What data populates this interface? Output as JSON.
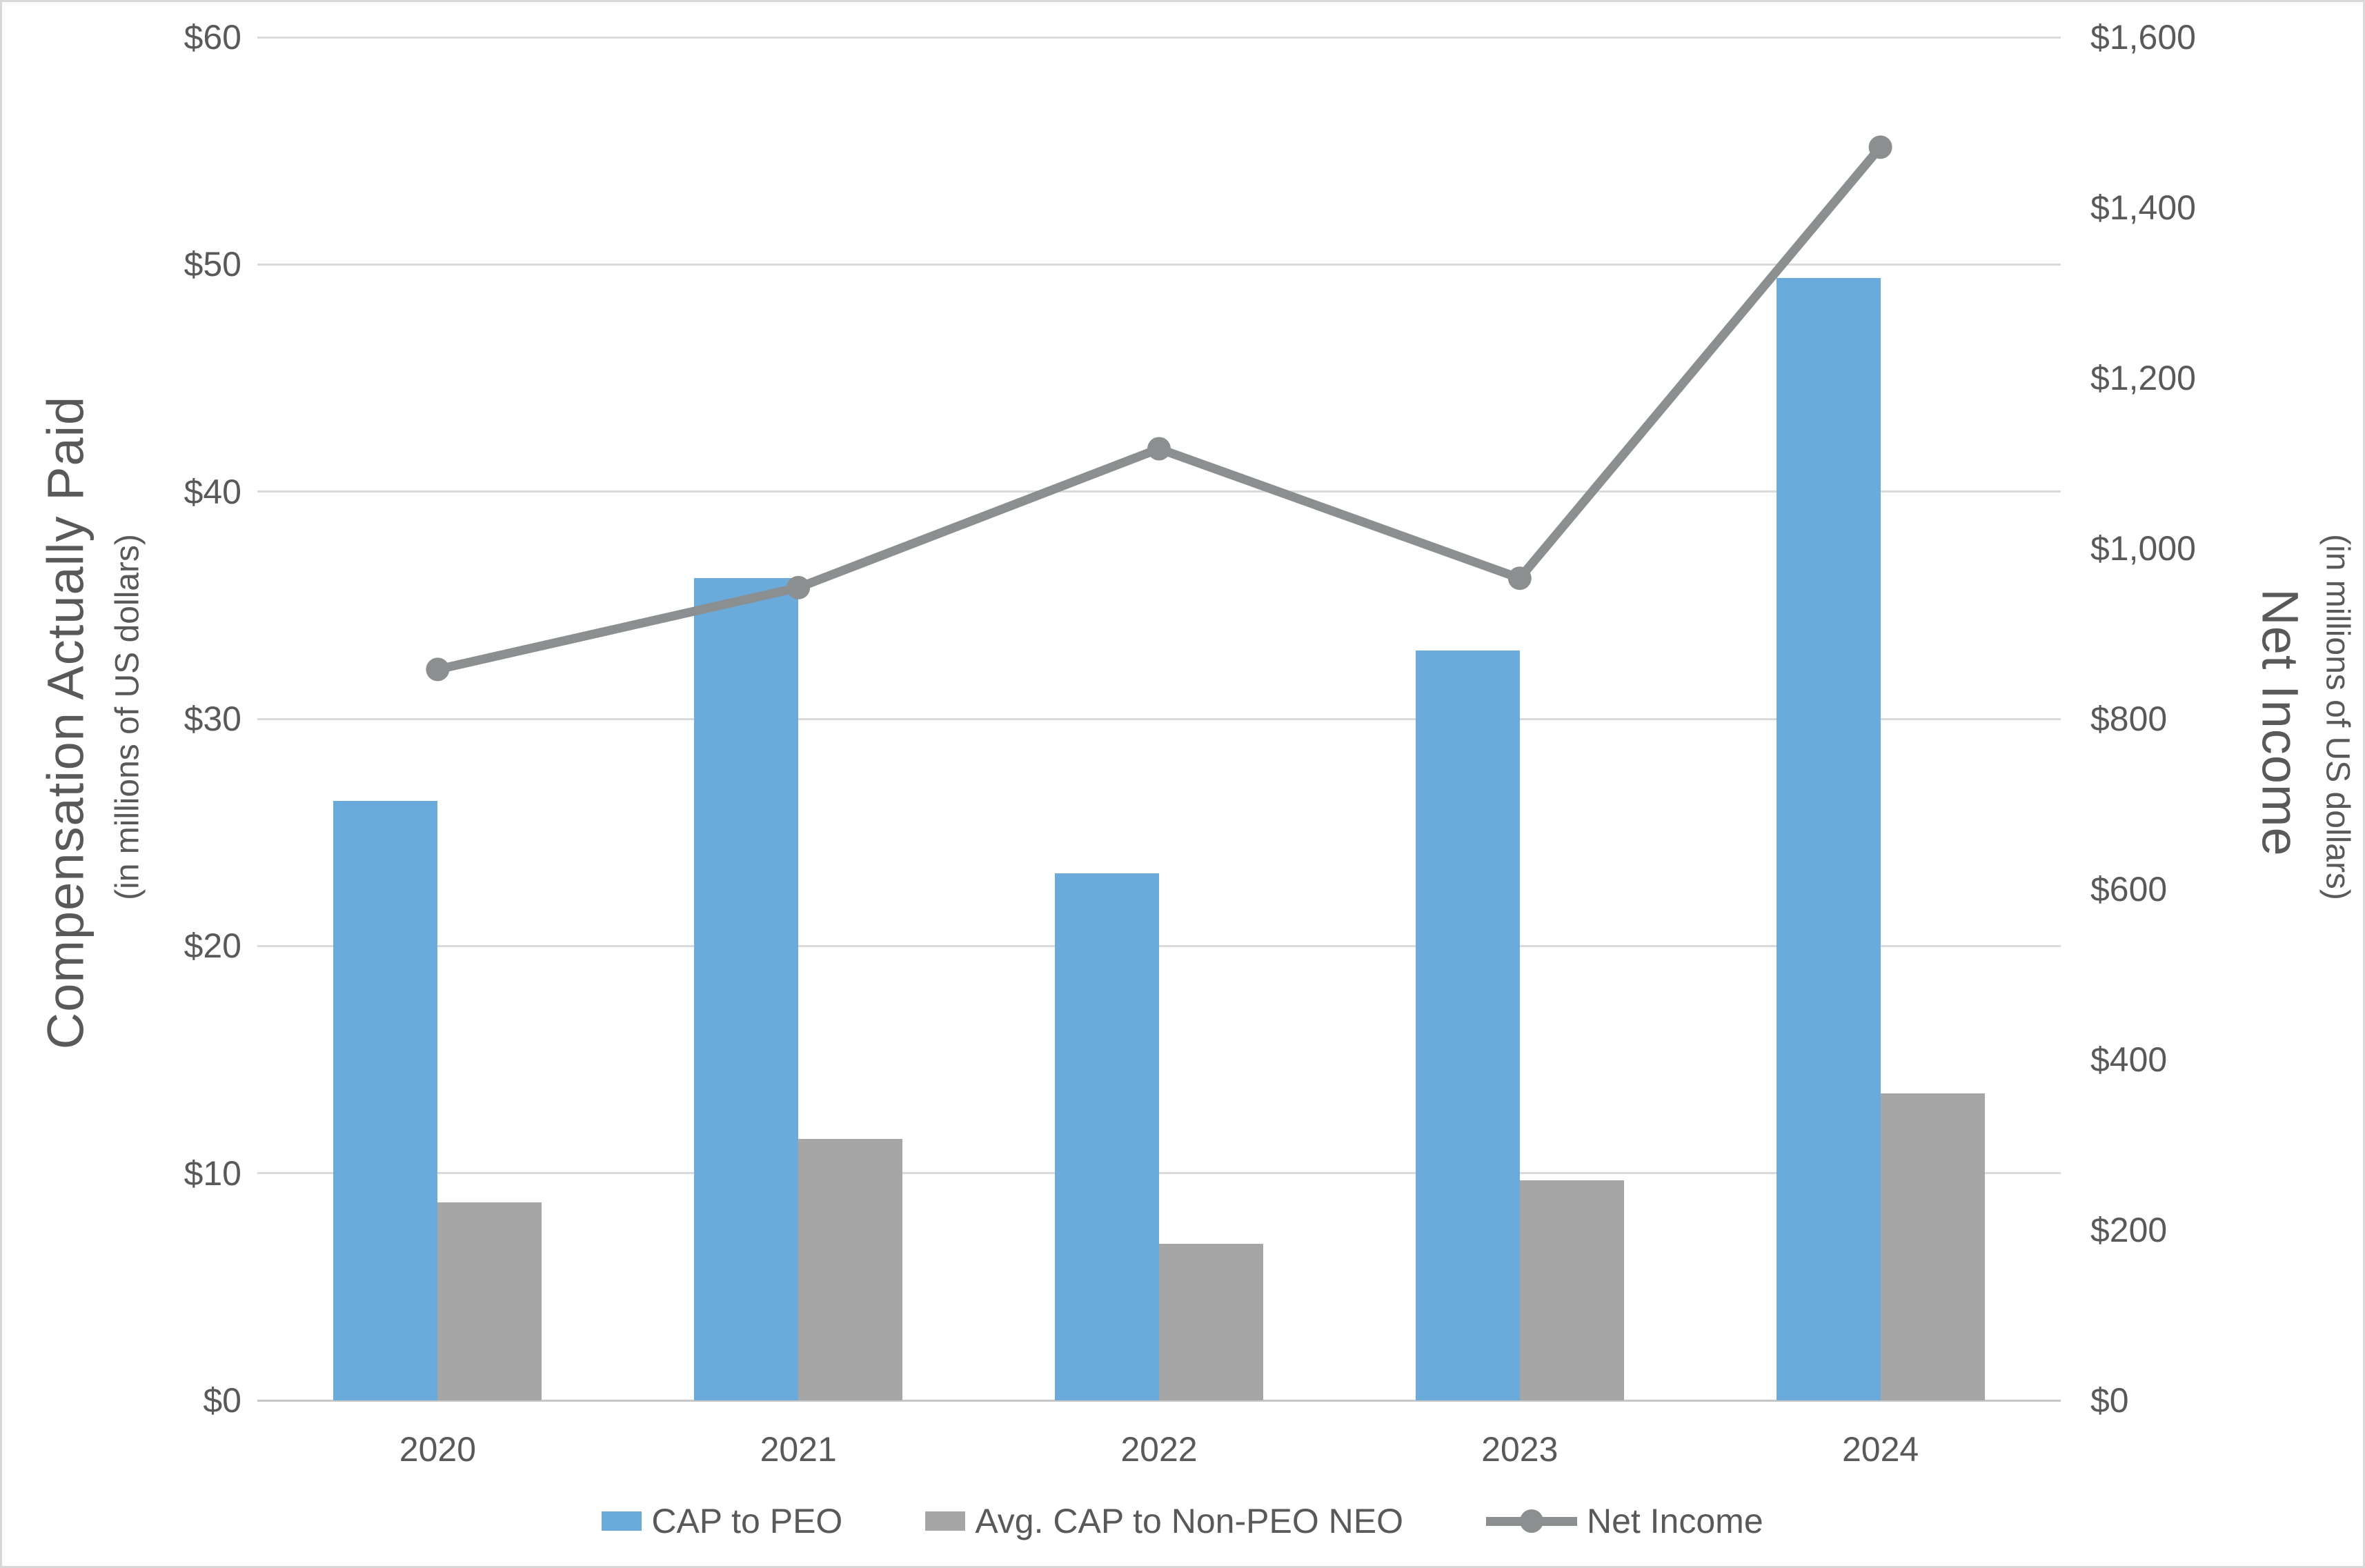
{
  "chart_data": {
    "type": "bar",
    "subtype": "grouped-bars-with-line-combo",
    "categories": [
      "2020",
      "2021",
      "2022",
      "2023",
      "2024"
    ],
    "series": [
      {
        "name": "CAP to PEO",
        "type": "bar",
        "axis": "left",
        "color": "#6aabdc",
        "values": [
          26.4,
          36.2,
          23.2,
          33.0,
          49.4
        ]
      },
      {
        "name": "Avg. CAP to Non-PEO NEO",
        "type": "bar",
        "axis": "left",
        "color": "#a6a6a6",
        "values": [
          8.7,
          11.5,
          6.9,
          9.7,
          13.5
        ]
      },
      {
        "name": "Net Income",
        "type": "line",
        "axis": "right",
        "color": "#8c8f90",
        "values": [
          858,
          954,
          1117,
          965,
          1471
        ]
      }
    ],
    "left_axis": {
      "title": "Compensation Actually Paid",
      "subtitle": "(in millions of US dollars)",
      "min": 0,
      "max": 60,
      "step": 10,
      "tick_labels": [
        "$60",
        "$50",
        "$40",
        "$30",
        "$20",
        "$10",
        "$0"
      ]
    },
    "right_axis": {
      "title": "Net Income",
      "subtitle": "(in millions of US dollars)",
      "min": 0,
      "max": 1600,
      "step": 200,
      "tick_labels": [
        "$1,600",
        "$1,400",
        "$1,200",
        "$1,000",
        "$800",
        "$600",
        "$400",
        "$200",
        "$0"
      ]
    },
    "legend_position": "bottom",
    "grid": true,
    "colors": {
      "gridline": "#dadada",
      "axis_line": "#c7c7c7",
      "text": "#595959",
      "background": "#ffffff",
      "frame_border": "#d8d8d8"
    }
  }
}
